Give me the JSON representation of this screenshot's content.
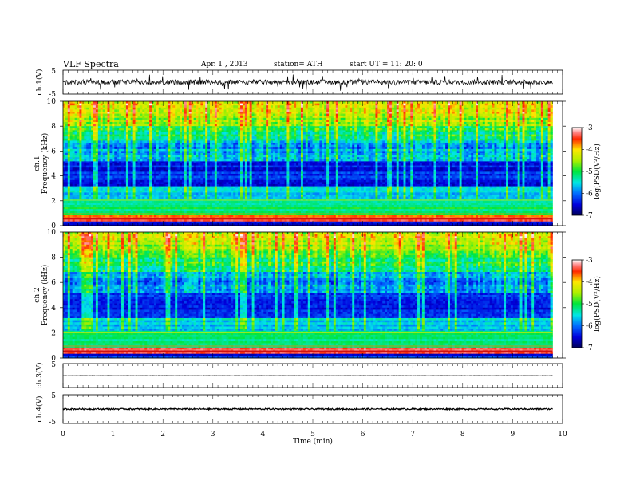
{
  "header": {
    "title": "VLF  Spectra",
    "date": "Apr. 1  , 2013",
    "station": "station= ATH",
    "start": "start  UT  =    11: 20: 0"
  },
  "chart_data": [
    {
      "type": "line",
      "panel": "ch1-waveform",
      "ylabel": "ch.1(V)",
      "ylim": [
        -5,
        5
      ],
      "y_ticks": [
        "5",
        "-5"
      ],
      "baseline": 0,
      "noise_amplitude": 1.0
    },
    {
      "type": "heatmap",
      "panel": "ch1-spectrogram",
      "ylabel": [
        "ch.1",
        "Frequency  (kHz)"
      ],
      "ylim": [
        0,
        10
      ],
      "y_ticks": [
        "0",
        "2",
        "4",
        "6",
        "8",
        "10"
      ],
      "colorbar": {
        "label": "log(PSD(V²/Hz)",
        "range": [
          -7,
          -3
        ],
        "ticks": [
          "-3",
          "-4",
          "-5",
          "-6",
          "-7"
        ]
      }
    },
    {
      "type": "heatmap",
      "panel": "ch2-spectrogram",
      "ylabel": [
        "ch.2",
        "Frequency  (kHz)"
      ],
      "ylim": [
        0,
        10
      ],
      "y_ticks": [
        "0",
        "2",
        "4",
        "6",
        "8",
        "10"
      ],
      "colorbar": {
        "label": "log(PSD(V²/Hz)",
        "range": [
          -7,
          -3
        ],
        "ticks": [
          "-3",
          "-4",
          "-5",
          "-6",
          "-7"
        ]
      }
    },
    {
      "type": "line",
      "panel": "ch3-waveform",
      "ylabel": "ch.3(V)",
      "ylim": [
        -5,
        5
      ],
      "y_ticks": [
        "5"
      ],
      "baseline": 0,
      "noise_amplitude": 0.05
    },
    {
      "type": "line",
      "panel": "ch4-waveform",
      "ylabel": "ch.4(V)",
      "ylim": [
        -5,
        5
      ],
      "y_ticks": [
        "5",
        "-5"
      ],
      "baseline": 0,
      "noise_amplitude": 0.25
    }
  ],
  "xaxis": {
    "label": "Time  (min)",
    "range": [
      0,
      10
    ],
    "data_end": 9.8,
    "ticks": [
      "0",
      "1",
      "2",
      "3",
      "4",
      "5",
      "6",
      "7",
      "8",
      "9",
      "10"
    ]
  }
}
